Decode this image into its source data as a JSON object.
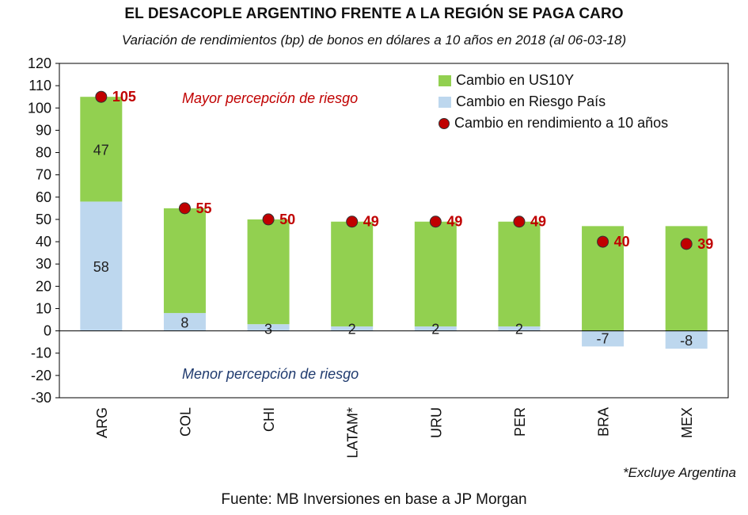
{
  "chart_data": {
    "type": "bar",
    "title": "EL DESACOPLE ARGENTINO FRENTE A LA REGIÓN SE PAGA CARO",
    "subtitle": "Variación de rendimientos (bp) de bonos en dólares a 10 años en 2018 (al 06-03-18)",
    "categories": [
      "ARG",
      "COL",
      "CHI",
      "LATAM*",
      "URU",
      "PER",
      "BRA",
      "MEX"
    ],
    "series": [
      {
        "name": "Cambio en Riesgo País",
        "values": [
          58,
          8,
          3,
          2,
          2,
          2,
          -7,
          -8
        ],
        "color": "#bdd7ee"
      },
      {
        "name": "Cambio en US10Y",
        "values": [
          47,
          47,
          47,
          47,
          47,
          47,
          47,
          47
        ],
        "color": "#92d050"
      },
      {
        "name": "Cambio en rendimiento a 10 años",
        "values": [
          105,
          55,
          50,
          49,
          49,
          49,
          40,
          39
        ],
        "color": "#c00000"
      }
    ],
    "ylim": [
      -30,
      120
    ],
    "yticks": [
      120,
      110,
      100,
      90,
      80,
      70,
      60,
      50,
      40,
      30,
      20,
      10,
      0,
      -10,
      -20,
      -30
    ],
    "annotations": {
      "upper": "Mayor percepción de riesgo",
      "lower": "Menor percepción de riesgo"
    },
    "legend_position": "top-right"
  },
  "footnote": "*Excluye Argentina",
  "source": "Fuente: MB Inversiones en base a JP Morgan"
}
